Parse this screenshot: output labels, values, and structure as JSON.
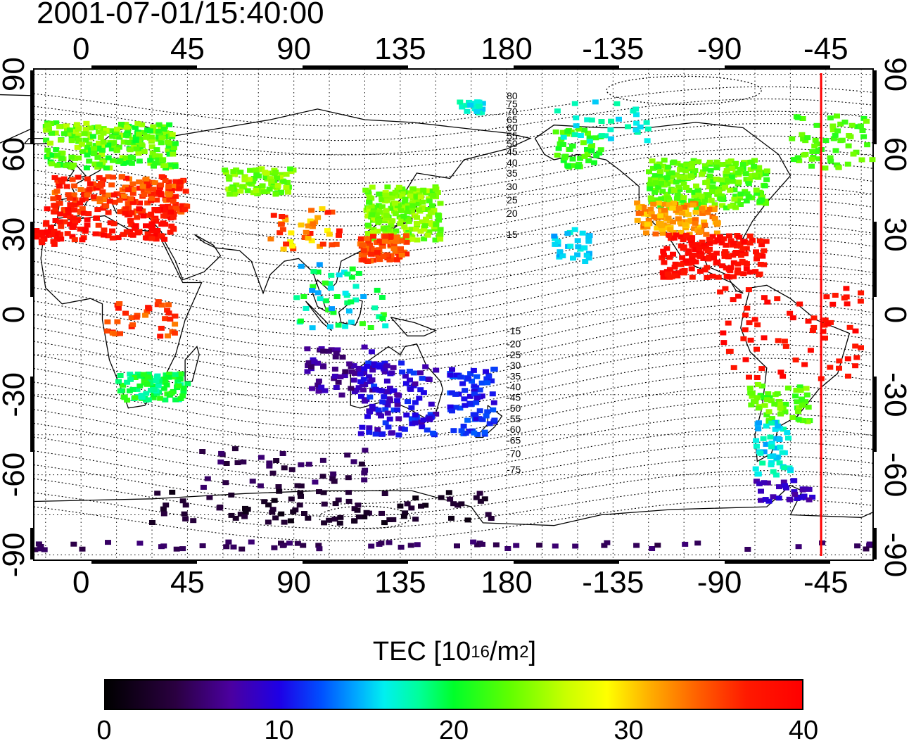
{
  "timestamp": "2001-07-01/15:40:00",
  "map": {
    "top_ticks": [
      "0",
      "45",
      "90",
      "135",
      "180",
      "-135",
      "-90",
      "-45"
    ],
    "bottom_ticks": [
      "0",
      "45",
      "90",
      "135",
      "180",
      "-135",
      "-90",
      "-45"
    ],
    "left_ticks": [
      "90",
      "60",
      "30",
      "0",
      "-30",
      "-60",
      "-90"
    ],
    "right_ticks": [
      "90",
      "60",
      "30",
      "0",
      "-30",
      "-60",
      "-90"
    ],
    "lon_range": [
      -20,
      335
    ],
    "lat_range": [
      -92,
      92
    ],
    "contour_labels": [
      "80",
      "75",
      "70",
      "65",
      "60",
      "55",
      "50",
      "45",
      "40",
      "35",
      "30",
      "25",
      "20",
      "15",
      "-15",
      "-20",
      "-25",
      "-30",
      "-35",
      "-40",
      "-45",
      "-50",
      "-55",
      "-60",
      "-65",
      "-70",
      "-75"
    ],
    "meridian_line_lon": 313,
    "meridian_line_color": "#ff0000"
  },
  "colorbar": {
    "title_main": "TEC  [10",
    "title_sup1": "16",
    "title_mid": "/m",
    "title_sup2": "2",
    "title_end": "]",
    "ticks": [
      "0",
      "10",
      "20",
      "30",
      "40"
    ],
    "range": [
      0,
      40
    ]
  }
}
